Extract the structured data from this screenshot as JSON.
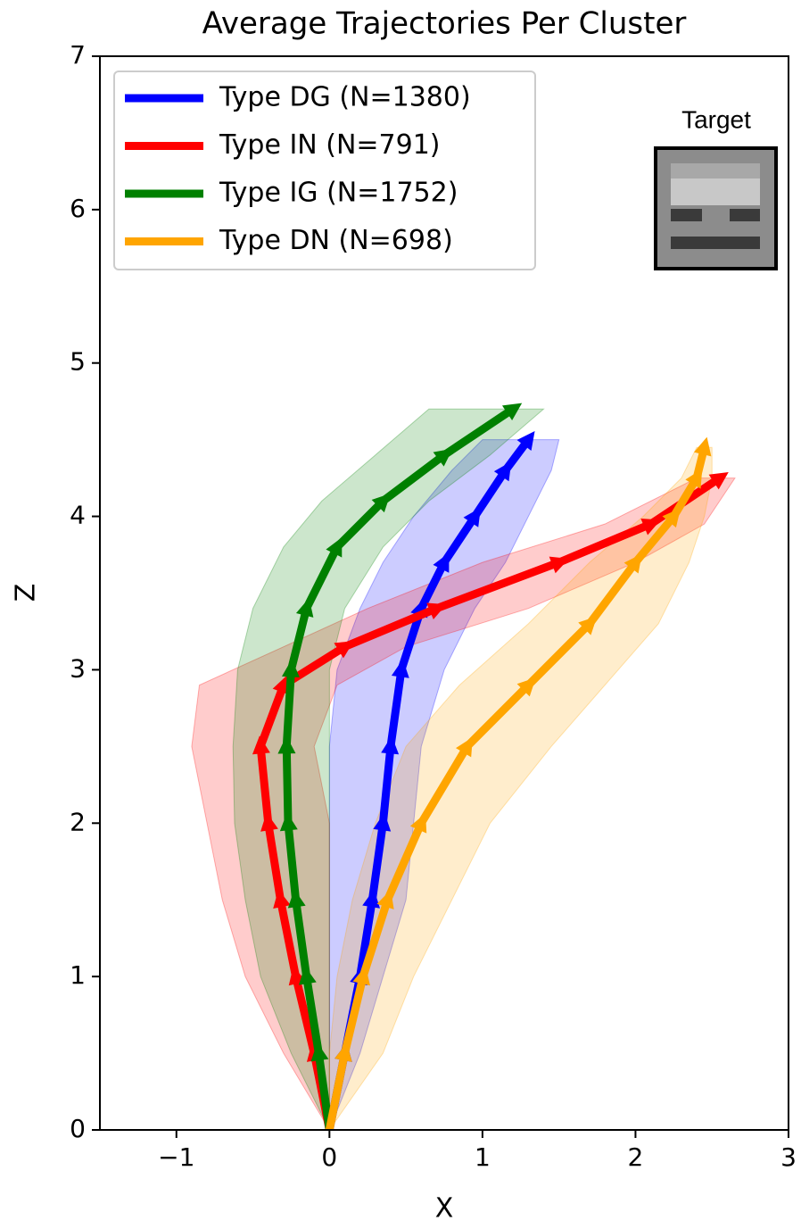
{
  "chart_data": {
    "type": "line",
    "title": "Average Trajectories Per Cluster",
    "x_label": "X",
    "y_label": "Z",
    "inset_label": "Target",
    "xlim": [
      -1.5,
      3
    ],
    "ylim": [
      0,
      7
    ],
    "xticks": [
      {
        "value": -1,
        "label": "−1"
      },
      0,
      1,
      2,
      3
    ],
    "yticks": [
      0,
      1,
      2,
      3,
      4,
      5,
      6,
      7
    ],
    "grid": false,
    "legend": "upper left",
    "series": [
      {
        "name": "Type DG (N=1380)",
        "color": "#0000ff",
        "x": [
          0,
          0.1,
          0.2,
          0.28,
          0.35,
          0.4,
          0.47,
          0.6,
          0.75,
          0.95,
          1.15,
          1.3
        ],
        "values": [
          0,
          0.5,
          1.0,
          1.5,
          2.0,
          2.5,
          3.0,
          3.4,
          3.7,
          4.0,
          4.3,
          4.5
        ],
        "x_low": [
          0,
          0,
          0,
          0,
          0,
          0,
          0.05,
          0.2,
          0.35,
          0.55,
          0.8,
          1.0
        ],
        "x_high": [
          0,
          0.2,
          0.35,
          0.5,
          0.55,
          0.6,
          0.75,
          0.95,
          1.15,
          1.3,
          1.45,
          1.5
        ]
      },
      {
        "name": "Type IN (N=791)",
        "color": "#ff0000",
        "x": [
          0,
          -0.1,
          -0.22,
          -0.32,
          -0.4,
          -0.45,
          -0.3,
          0.1,
          0.7,
          1.5,
          2.1,
          2.55
        ],
        "values": [
          0,
          0.5,
          1.0,
          1.5,
          2.0,
          2.5,
          2.9,
          3.15,
          3.4,
          3.7,
          3.95,
          4.25
        ],
        "x_low": [
          0,
          -0.3,
          -0.55,
          -0.7,
          -0.8,
          -0.9,
          -0.85,
          -0.3,
          0.25,
          1.0,
          1.8,
          2.4
        ],
        "x_high": [
          0,
          0,
          0,
          0,
          0,
          -0.1,
          0.05,
          0.5,
          1.3,
          2.0,
          2.45,
          2.65
        ]
      },
      {
        "name": "Type IG (N=1752)",
        "color": "#008000",
        "x": [
          0,
          -0.07,
          -0.15,
          -0.22,
          -0.27,
          -0.28,
          -0.25,
          -0.15,
          0.05,
          0.35,
          0.75,
          1.2
        ],
        "values": [
          0,
          0.5,
          1.0,
          1.5,
          2.0,
          2.5,
          3.0,
          3.4,
          3.8,
          4.1,
          4.4,
          4.7
        ],
        "x_low": [
          0,
          -0.25,
          -0.45,
          -0.55,
          -0.62,
          -0.63,
          -0.6,
          -0.5,
          -0.3,
          -0.05,
          0.3,
          0.65
        ],
        "x_high": [
          0,
          0,
          0,
          0,
          0,
          0,
          0,
          0.1,
          0.35,
          0.65,
          1.05,
          1.4
        ]
      },
      {
        "name": "Type DN (N=698)",
        "color": "#ffa500",
        "x": [
          0,
          0.1,
          0.22,
          0.38,
          0.6,
          0.9,
          1.3,
          1.7,
          2.0,
          2.25,
          2.4,
          2.45
        ],
        "values": [
          0,
          0.5,
          1.0,
          1.5,
          2.0,
          2.5,
          2.9,
          3.3,
          3.7,
          4.0,
          4.25,
          4.45
        ],
        "x_low": [
          0,
          0,
          0.05,
          0.15,
          0.3,
          0.5,
          0.85,
          1.3,
          1.7,
          2.05,
          2.3,
          2.4
        ],
        "x_high": [
          0,
          0.35,
          0.55,
          0.8,
          1.05,
          1.45,
          1.8,
          2.15,
          2.35,
          2.45,
          2.5,
          2.5
        ]
      }
    ]
  }
}
